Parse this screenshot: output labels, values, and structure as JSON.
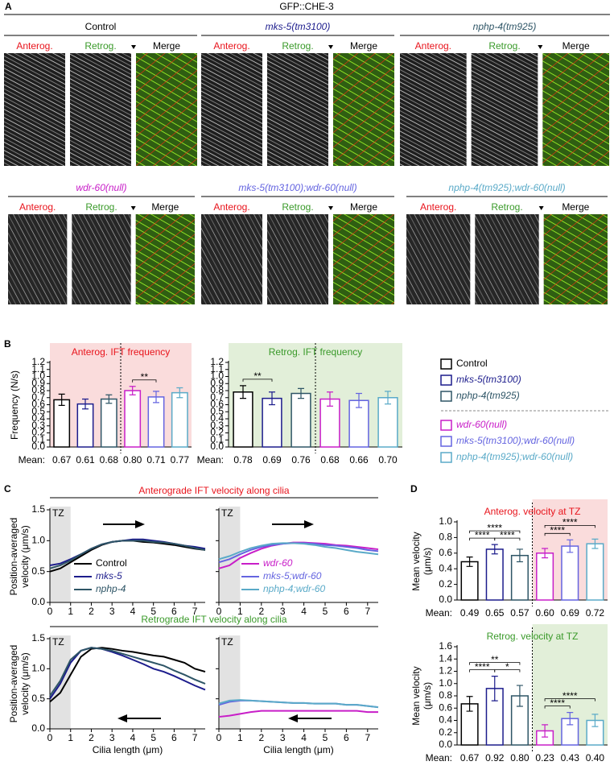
{
  "panel_a": {
    "label": "A",
    "title": "GFP::CHE-3",
    "channels": [
      "Anterog.",
      "Retrog.",
      "Merge"
    ],
    "channel_colors": [
      "#e8141c",
      "#3a9a2a",
      "#000000"
    ],
    "genotypes": [
      {
        "name": "Control",
        "color": "#000000"
      },
      {
        "name": "mks-5(tm3100)",
        "color": "#1c1c8c"
      },
      {
        "name": "nphp-4(tm925)",
        "color": "#2e5566"
      },
      {
        "name": "wdr-60(null)",
        "color": "#c81ec8"
      },
      {
        "name": "mks-5(tm3100);wdr-60(null)",
        "color": "#6464e0"
      },
      {
        "name": "nphp-4(tm925);wdr-60(null)",
        "color": "#5aaac8"
      }
    ]
  },
  "panel_labels": {
    "b": "B",
    "c": "C",
    "d": "D"
  },
  "chart_data": [
    {
      "type": "bar",
      "title": "Anterog. IFT frequency",
      "title_color": "#e8141c",
      "ylabel": "Frequency (N/s)",
      "ylim": [
        0,
        1.2
      ],
      "yticks": [
        {
          "value": 0,
          "label": "0.0"
        },
        0.1,
        0.2,
        0.3,
        0.4,
        0.5,
        0.6,
        0.7,
        0.8,
        0.9,
        {
          "value": 1,
          "label": "1.0"
        },
        1.1,
        1.2
      ],
      "values": [
        0.67,
        0.61,
        0.68,
        0.8,
        0.71,
        0.77
      ],
      "errors": [
        0.08,
        0.07,
        0.06,
        0.06,
        0.08,
        0.07
      ],
      "value_labels": [
        "0.67",
        "0.61",
        "0.68",
        "0.80",
        "0.71",
        "0.77"
      ],
      "mean_label": "Mean:",
      "significance": [
        {
          "label": "**",
          "between": [
            3,
            4
          ]
        }
      ]
    },
    {
      "type": "bar",
      "title": "Retrog. IFT frequency",
      "title_color": "#3a9a2a",
      "ylim": [
        0,
        1.2
      ],
      "yticks": [
        {
          "value": 0,
          "label": "0.0"
        },
        0.1,
        0.2,
        0.3,
        0.4,
        0.5,
        0.6,
        0.7,
        0.8,
        0.9,
        {
          "value": 1,
          "label": "1.0"
        },
        1.1,
        1.2
      ],
      "values": [
        0.78,
        0.69,
        0.76,
        0.68,
        0.66,
        0.7
      ],
      "errors": [
        0.09,
        0.09,
        0.07,
        0.1,
        0.1,
        0.09
      ],
      "value_labels": [
        "0.78",
        "0.69",
        "0.76",
        "0.68",
        "0.66",
        "0.70"
      ],
      "mean_label": "Mean:",
      "significance": [
        {
          "label": "**",
          "between": [
            0,
            1
          ]
        }
      ]
    },
    {
      "type": "line",
      "title": "Anterograde IFT velocity along cilia",
      "title_color": "#e8141c",
      "ylabel": "Position-averaged velocity (μm/s)",
      "x": [
        0,
        0.5,
        1,
        1.5,
        2,
        2.5,
        3,
        3.5,
        4,
        4.5,
        5,
        5.5,
        6,
        6.5,
        7,
        7.5
      ],
      "xlim": [
        0,
        7.5
      ],
      "xticks": [
        0,
        1,
        2,
        3,
        4,
        5,
        6,
        7
      ],
      "ylim": [
        0,
        1.5
      ],
      "yticks": [
        {
          "value": 0,
          "label": "0.0"
        },
        0.5,
        {
          "value": 1,
          "label": "1.0"
        },
        1.5
      ],
      "tz": {
        "label": "TZ",
        "range": [
          0,
          1
        ]
      },
      "series": [
        {
          "name": "Control",
          "color": "#000000",
          "values": [
            0.5,
            0.55,
            0.65,
            0.75,
            0.85,
            0.93,
            0.98,
            1.0,
            1.0,
            0.98,
            0.97,
            0.95,
            0.93,
            0.9,
            0.87,
            0.85
          ]
        },
        {
          "name": "mks-5",
          "color": "#1c1c8c",
          "values": [
            0.6,
            0.63,
            0.7,
            0.78,
            0.87,
            0.94,
            0.98,
            1.0,
            1.02,
            1.02,
            1.0,
            0.98,
            0.95,
            0.92,
            0.9,
            0.87
          ]
        },
        {
          "name": "nphp-4",
          "color": "#2e5566",
          "values": [
            0.55,
            0.6,
            0.68,
            0.78,
            0.87,
            0.94,
            0.98,
            1.0,
            1.0,
            1.0,
            0.98,
            0.97,
            0.95,
            0.92,
            0.88,
            0.85
          ]
        }
      ]
    },
    {
      "type": "line",
      "x": [
        0,
        0.5,
        1,
        1.5,
        2,
        2.5,
        3,
        3.5,
        4,
        4.5,
        5,
        5.5,
        6,
        6.5,
        7,
        7.5
      ],
      "xlim": [
        0,
        7.5
      ],
      "xticks": [
        0,
        1,
        2,
        3,
        4,
        5,
        6,
        7
      ],
      "ylim": [
        0,
        1.5
      ],
      "yticks": [
        0,
        0.5,
        1,
        1.5
      ],
      "tz": {
        "label": "TZ",
        "range": [
          0,
          1
        ]
      },
      "series": [
        {
          "name": "wdr-60",
          "color": "#c81ec8",
          "values": [
            0.55,
            0.6,
            0.72,
            0.8,
            0.87,
            0.92,
            0.95,
            0.97,
            0.97,
            0.96,
            0.95,
            0.93,
            0.92,
            0.9,
            0.88,
            0.86
          ]
        },
        {
          "name": "mks-5;wdr-60",
          "color": "#6464e0",
          "values": [
            0.65,
            0.7,
            0.78,
            0.85,
            0.9,
            0.93,
            0.95,
            0.96,
            0.96,
            0.95,
            0.93,
            0.92,
            0.9,
            0.88,
            0.85,
            0.83
          ]
        },
        {
          "name": "nphp-4;wdr-60",
          "color": "#5aaac8",
          "values": [
            0.7,
            0.75,
            0.82,
            0.88,
            0.92,
            0.95,
            0.96,
            0.96,
            0.95,
            0.93,
            0.9,
            0.88,
            0.85,
            0.82,
            0.8,
            0.78
          ]
        }
      ]
    },
    {
      "type": "line",
      "title": "Retrograde IFT velocity along cilia",
      "title_color": "#3a9a2a",
      "ylabel": "Position-averaged velocity (μm/s)",
      "xlabel": "Cilia length (μm)",
      "x": [
        0,
        0.5,
        1,
        1.5,
        2,
        2.5,
        3,
        3.5,
        4,
        4.5,
        5,
        5.5,
        6,
        6.5,
        7,
        7.5
      ],
      "xlim": [
        0,
        7.5
      ],
      "xticks": [
        0,
        1,
        2,
        3,
        4,
        5,
        6,
        7
      ],
      "ylim": [
        0,
        1.5
      ],
      "yticks": [
        {
          "value": 0,
          "label": "0.0"
        },
        0.5,
        {
          "value": 1,
          "label": "1.0"
        },
        1.5
      ],
      "tz": {
        "label": "TZ",
        "range": [
          0,
          1
        ]
      },
      "series": [
        {
          "color": "#000000",
          "values": [
            0.45,
            0.6,
            0.9,
            1.2,
            1.33,
            1.35,
            1.33,
            1.3,
            1.28,
            1.25,
            1.22,
            1.2,
            1.15,
            1.1,
            1.0,
            0.95
          ]
        },
        {
          "color": "#1c1c8c",
          "values": [
            0.5,
            0.75,
            1.1,
            1.3,
            1.35,
            1.33,
            1.28,
            1.22,
            1.15,
            1.08,
            1.0,
            0.95,
            0.88,
            0.8,
            0.72,
            0.65
          ]
        },
        {
          "color": "#2e5566",
          "values": [
            0.55,
            0.8,
            1.15,
            1.3,
            1.35,
            1.33,
            1.3,
            1.25,
            1.2,
            1.15,
            1.1,
            1.05,
            0.97,
            0.9,
            0.82,
            0.75
          ]
        }
      ]
    },
    {
      "type": "line",
      "xlabel": "Cilia length (μm)",
      "x": [
        0,
        0.5,
        1,
        1.5,
        2,
        2.5,
        3,
        3.5,
        4,
        4.5,
        5,
        5.5,
        6,
        6.5,
        7,
        7.5
      ],
      "xlim": [
        0,
        7.5
      ],
      "xticks": [
        0,
        1,
        2,
        3,
        4,
        5,
        6,
        7
      ],
      "ylim": [
        0,
        1.5
      ],
      "yticks": [
        0,
        0.5,
        1,
        1.5
      ],
      "tz": {
        "label": "TZ",
        "range": [
          0,
          1
        ]
      },
      "series": [
        {
          "color": "#c81ec8",
          "values": [
            0.2,
            0.22,
            0.25,
            0.28,
            0.3,
            0.3,
            0.3,
            0.3,
            0.3,
            0.3,
            0.3,
            0.3,
            0.3,
            0.3,
            0.28,
            0.28
          ]
        },
        {
          "color": "#6464e0",
          "values": [
            0.4,
            0.45,
            0.47,
            0.47,
            0.46,
            0.45,
            0.44,
            0.43,
            0.43,
            0.42,
            0.42,
            0.42,
            0.4,
            0.4,
            0.38,
            0.36
          ]
        },
        {
          "color": "#5aaac8",
          "values": [
            0.42,
            0.47,
            0.48,
            0.47,
            0.46,
            0.45,
            0.44,
            0.43,
            0.43,
            0.42,
            0.42,
            0.42,
            0.4,
            0.4,
            0.38,
            0.36
          ]
        }
      ]
    },
    {
      "type": "bar",
      "title": "Anterog. velocity at TZ",
      "title_color": "#e8141c",
      "ylabel": "Mean velocity (μm/s)",
      "ylim": [
        0,
        1
      ],
      "yticks": [
        {
          "value": 0,
          "label": "0.0"
        },
        0.2,
        0.4,
        0.6,
        0.8,
        {
          "value": 1,
          "label": "1.0"
        }
      ],
      "values": [
        0.49,
        0.65,
        0.57,
        0.6,
        0.69,
        0.72
      ],
      "errors": [
        0.06,
        0.06,
        0.08,
        0.06,
        0.08,
        0.06
      ],
      "value_labels": [
        "0.49",
        "0.65",
        "0.57",
        "0.60",
        "0.69",
        "0.72"
      ],
      "mean_label": "Mean:",
      "significance": [
        {
          "label": "****",
          "between": [
            0,
            1
          ]
        },
        {
          "label": "****",
          "between": [
            1,
            2
          ]
        },
        {
          "label": "****",
          "between": [
            0,
            2
          ]
        },
        {
          "label": "****",
          "between": [
            3,
            4
          ]
        },
        {
          "label": "****",
          "between": [
            3,
            5
          ]
        }
      ]
    },
    {
      "type": "bar",
      "title": "Retrog. velocity at TZ",
      "title_color": "#3a9a2a",
      "ylabel": "Mean velocity (μm/s)",
      "ylim": [
        0,
        1.6
      ],
      "yticks": [
        {
          "value": 0,
          "label": "0.0"
        },
        0.2,
        0.4,
        0.6,
        0.8,
        {
          "value": 1,
          "label": "1.0"
        },
        1.2,
        1.4,
        1.6
      ],
      "values": [
        0.67,
        0.92,
        0.8,
        0.23,
        0.43,
        0.4
      ],
      "errors": [
        0.12,
        0.2,
        0.17,
        0.1,
        0.1,
        0.1
      ],
      "value_labels": [
        "0.67",
        "0.92",
        "0.80",
        "0.23",
        "0.43",
        "0.40"
      ],
      "mean_label": "Mean:",
      "significance": [
        {
          "label": "****",
          "between": [
            0,
            1
          ]
        },
        {
          "label": "*",
          "between": [
            1,
            2
          ]
        },
        {
          "label": "**",
          "between": [
            0,
            2
          ]
        },
        {
          "label": "****",
          "between": [
            3,
            4
          ]
        },
        {
          "label": "****",
          "between": [
            3,
            5
          ]
        }
      ]
    }
  ]
}
